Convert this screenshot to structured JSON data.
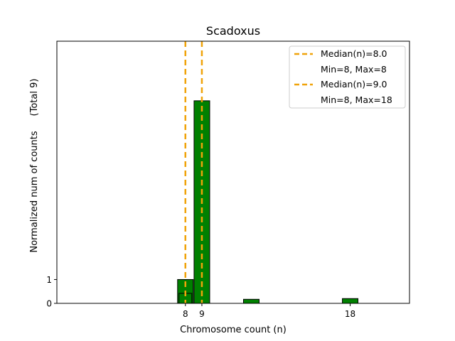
{
  "chart_data": {
    "type": "bar",
    "title": "Scadoxus",
    "xlabel": "Chromosome count (n)",
    "ylabel": "Normalized num of counts",
    "ylabel_extra": "(Total 9)",
    "xlim": [
      0.2,
      21.6
    ],
    "ylim": [
      0,
      11
    ],
    "x_ticks": [
      8,
      9,
      18
    ],
    "y_ticks": [
      0,
      1
    ],
    "bar_color": "#008000",
    "bar_edge_color": "#000000",
    "median_color": "#f0a30a",
    "series": [
      {
        "bars": [
          {
            "x": 8,
            "value": 1.0
          },
          {
            "x": 9,
            "value": 8.5
          },
          {
            "x": 12,
            "value": 0.17
          },
          {
            "x": 18,
            "value": 0.2
          }
        ]
      },
      {
        "bars": [
          {
            "x": 8,
            "value": 0.42
          }
        ]
      }
    ],
    "medians": [
      8.0,
      9.0
    ],
    "legend": {
      "position": "top-right",
      "entries": [
        {
          "label": "Median(n)=8.0",
          "sublabel": "Min=8, Max=8"
        },
        {
          "label": "Median(n)=9.0",
          "sublabel": "Min=8, Max=18"
        }
      ]
    }
  }
}
